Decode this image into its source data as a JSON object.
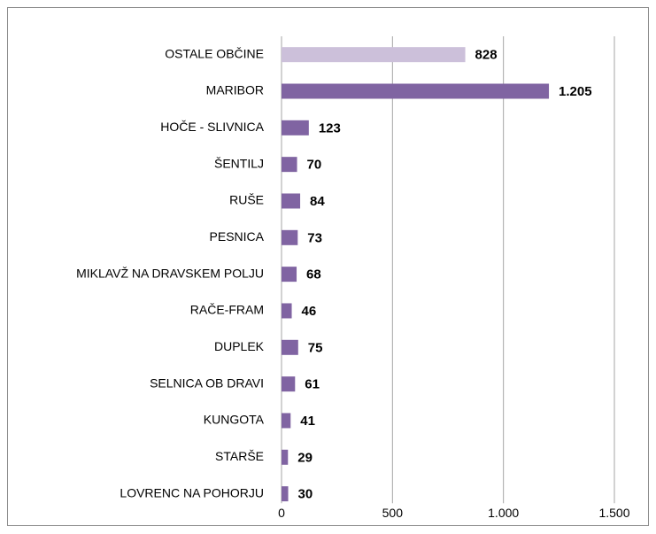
{
  "chart_data": {
    "type": "hbar",
    "categories": [
      "OSTALE OBČINE",
      "MARIBOR",
      "HOČE - SLIVNICA",
      "ŠENTILJ",
      "RUŠE",
      "PESNICA",
      "MIKLAVŽ NA DRAVSKEM POLJU",
      "RAČE-FRAM",
      "DUPLEK",
      "SELNICA OB DRAVI",
      "KUNGOTA",
      "STARŠE",
      "LOVRENC NA POHORJU"
    ],
    "values": [
      828,
      1205,
      123,
      70,
      84,
      73,
      68,
      46,
      75,
      61,
      41,
      29,
      30
    ],
    "value_labels": [
      "828",
      "1.205",
      "123",
      "70",
      "84",
      "73",
      "68",
      "46",
      "75",
      "61",
      "41",
      "29",
      "30"
    ],
    "colors": [
      "#ccc0da",
      "#8064a2",
      "#8064a2",
      "#8064a2",
      "#8064a2",
      "#8064a2",
      "#8064a2",
      "#8064a2",
      "#8064a2",
      "#8064a2",
      "#8064a2",
      "#8064a2",
      "#8064a2"
    ],
    "xlim": [
      0,
      1500
    ],
    "xticks": [
      0,
      500,
      {
        "value": 1000,
        "label": "1.000"
      },
      {
        "value": 1500,
        "label": "1.500"
      }
    ],
    "grid": true
  }
}
